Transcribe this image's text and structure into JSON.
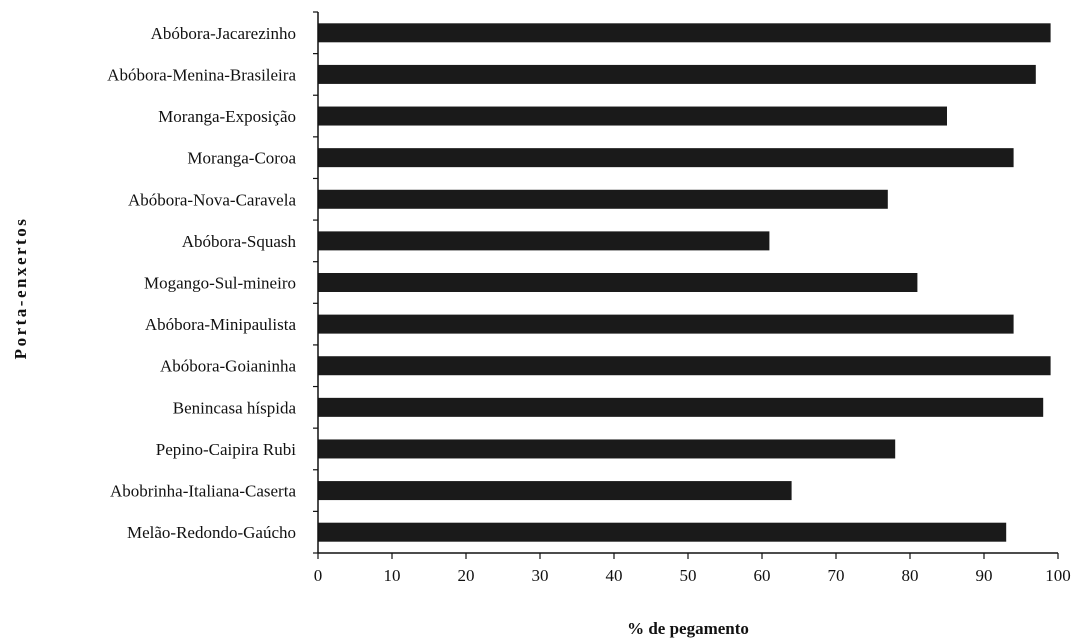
{
  "chart_data": {
    "type": "bar",
    "orientation": "horizontal",
    "title": "",
    "xlabel": "% de pegamento",
    "ylabel": "Porta-enxertos",
    "xlim": [
      0,
      100
    ],
    "xticks": [
      0,
      10,
      20,
      30,
      40,
      50,
      60,
      70,
      80,
      90,
      100
    ],
    "grid": false,
    "legend": "none",
    "bar_color": "#1a1a1a",
    "categories": [
      "Abóbora-Jacarezinho",
      "Abóbora-Menina-Brasileira",
      "Moranga-Exposição",
      "Moranga-Coroa",
      "Abóbora-Nova-Caravela",
      "Abóbora-Squash",
      "Mogango-Sul-mineiro",
      "Abóbora-Minipaulista",
      "Abóbora-Goianinha",
      "Benincasa híspida",
      "Pepino-Caipira Rubi",
      "Abobrinha-Italiana-Caserta",
      "Melão-Redondo-Gaúcho"
    ],
    "values": [
      99,
      97,
      85,
      94,
      77,
      61,
      81,
      94,
      99,
      98,
      78,
      64,
      93
    ]
  }
}
